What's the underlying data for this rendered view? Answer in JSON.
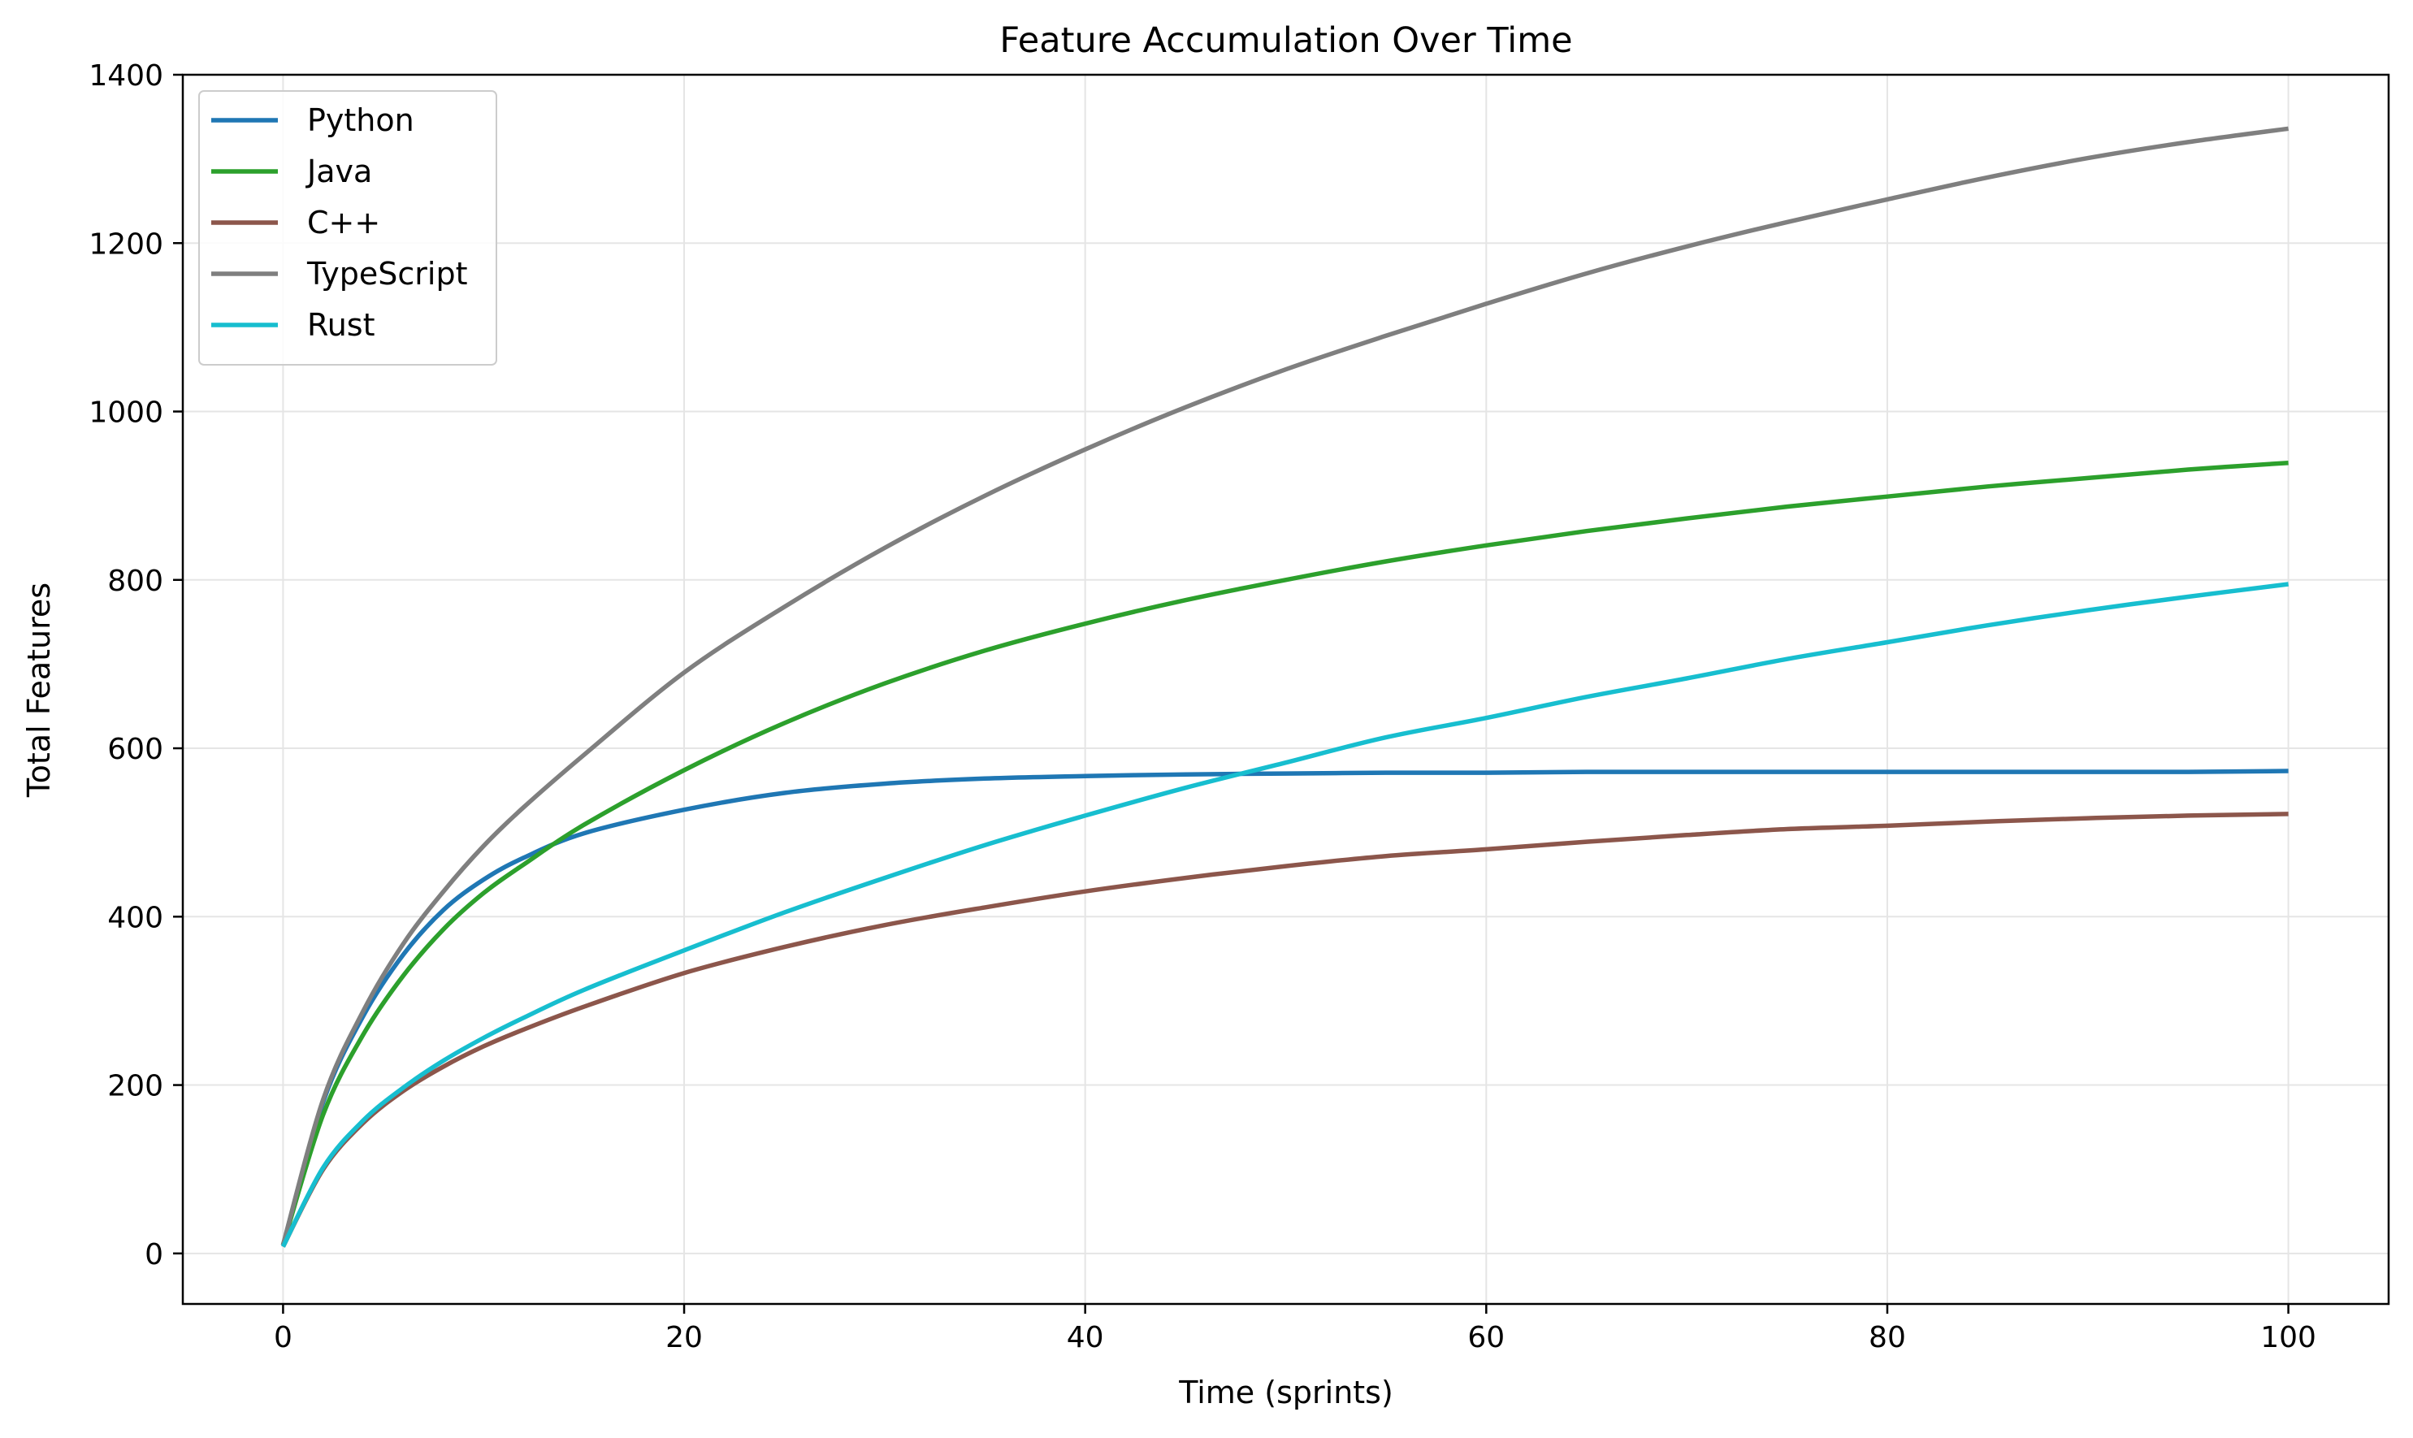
{
  "chart_data": {
    "type": "line",
    "title": "Feature Accumulation Over Time",
    "xlabel": "Time (sprints)",
    "ylabel": "Total Features",
    "xlim": [
      -5,
      105
    ],
    "ylim": [
      -60,
      1400
    ],
    "xticks": [
      0,
      20,
      40,
      60,
      80,
      100
    ],
    "yticks": [
      0,
      200,
      400,
      600,
      800,
      1000,
      1200,
      1400
    ],
    "grid": true,
    "legend_position": "top-left",
    "x": [
      0,
      2,
      4,
      6,
      8,
      10,
      12,
      15,
      20,
      25,
      30,
      35,
      40,
      45,
      50,
      55,
      60,
      65,
      70,
      75,
      80,
      85,
      90,
      95,
      100
    ],
    "series": [
      {
        "name": "Python",
        "color": "#1f77b4",
        "values": [
          10,
          180,
          282,
          355,
          408,
          444,
          470,
          499,
          527,
          547,
          558,
          564,
          567,
          569,
          570,
          571,
          571,
          572,
          572,
          572,
          572,
          572,
          572,
          572,
          573
        ]
      },
      {
        "name": "Java",
        "color": "#2ca02c",
        "values": [
          10,
          165,
          260,
          330,
          385,
          428,
          462,
          509,
          574,
          630,
          677,
          716,
          748,
          776,
          800,
          822,
          841,
          858,
          873,
          887,
          899,
          911,
          921,
          931,
          939
        ]
      },
      {
        "name": "C++",
        "color": "#8c564b",
        "values": [
          8,
          100,
          155,
          193,
          222,
          246,
          266,
          293,
          333,
          364,
          390,
          411,
          430,
          446,
          460,
          472,
          480,
          489,
          497,
          504,
          508,
          513,
          517,
          520,
          522
        ]
      },
      {
        "name": "TypeScript",
        "color": "#7f7f7f",
        "values": [
          10,
          183,
          288,
          368,
          430,
          484,
          530,
          592,
          690,
          768,
          838,
          900,
          955,
          1005,
          1050,
          1090,
          1128,
          1164,
          1196,
          1225,
          1252,
          1278,
          1301,
          1320,
          1336
        ]
      },
      {
        "name": "Rust",
        "color": "#17becf",
        "values": [
          8,
          102,
          158,
          197,
          229,
          256,
          280,
          313,
          360,
          405,
          446,
          485,
          520,
          553,
          583,
          613,
          636,
          661,
          683,
          706,
          726,
          746,
          764,
          780,
          795
        ]
      }
    ]
  },
  "style": {
    "grid_color": "#e5e5e5",
    "axis_color": "#000000",
    "background": "#ffffff"
  }
}
